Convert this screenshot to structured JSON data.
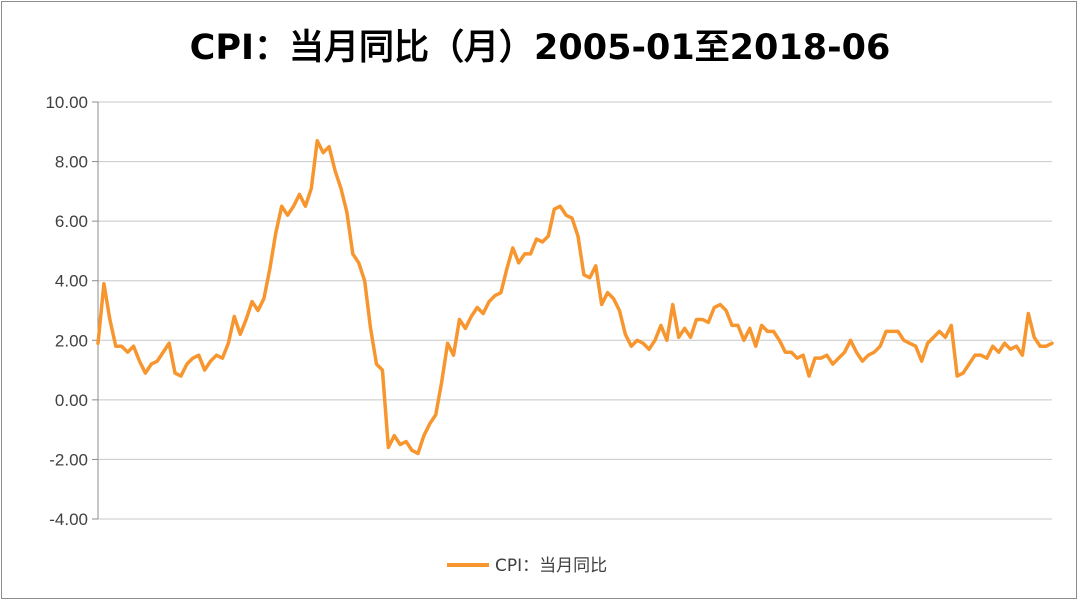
{
  "chart_data": {
    "type": "line",
    "title": "CPI：当月同比（月）2005-01至2018-06",
    "xlabel": "",
    "ylabel": "",
    "ylim": [
      -4,
      10
    ],
    "yticks": [
      "10.00",
      "8.00",
      "6.00",
      "4.00",
      "2.00",
      "0.00",
      "-2.00",
      "-4.00"
    ],
    "grid": true,
    "legend_position": "bottom",
    "colors": {
      "series": "#f7962f",
      "grid": "#c8c8c8",
      "axis": "#8c8c8c"
    },
    "x_start": "2005-01",
    "x_end": "2018-06",
    "series": [
      {
        "name": "CPI：当月同比",
        "values": [
          1.9,
          3.9,
          2.7,
          1.8,
          1.8,
          1.6,
          1.8,
          1.3,
          0.9,
          1.2,
          1.3,
          1.6,
          1.9,
          0.9,
          0.8,
          1.2,
          1.4,
          1.5,
          1.0,
          1.3,
          1.5,
          1.4,
          1.9,
          2.8,
          2.2,
          2.7,
          3.3,
          3.0,
          3.4,
          4.4,
          5.6,
          6.5,
          6.2,
          6.5,
          6.9,
          6.5,
          7.1,
          8.7,
          8.3,
          8.5,
          7.7,
          7.1,
          6.3,
          4.9,
          4.6,
          4.0,
          2.4,
          1.2,
          1.0,
          -1.6,
          -1.2,
          -1.5,
          -1.4,
          -1.7,
          -1.8,
          -1.2,
          -0.8,
          -0.5,
          0.6,
          1.9,
          1.5,
          2.7,
          2.4,
          2.8,
          3.1,
          2.9,
          3.3,
          3.5,
          3.6,
          4.4,
          5.1,
          4.6,
          4.9,
          4.9,
          5.4,
          5.3,
          5.5,
          6.4,
          6.5,
          6.2,
          6.1,
          5.5,
          4.2,
          4.1,
          4.5,
          3.2,
          3.6,
          3.4,
          3.0,
          2.2,
          1.8,
          2.0,
          1.9,
          1.7,
          2.0,
          2.5,
          2.0,
          3.2,
          2.1,
          2.4,
          2.1,
          2.7,
          2.7,
          2.6,
          3.1,
          3.2,
          3.0,
          2.5,
          2.5,
          2.0,
          2.4,
          1.8,
          2.5,
          2.3,
          2.3,
          2.0,
          1.6,
          1.6,
          1.4,
          1.5,
          0.8,
          1.4,
          1.4,
          1.5,
          1.2,
          1.4,
          1.6,
          2.0,
          1.6,
          1.3,
          1.5,
          1.6,
          1.8,
          2.3,
          2.3,
          2.3,
          2.0,
          1.9,
          1.8,
          1.3,
          1.9,
          2.1,
          2.3,
          2.1,
          2.5,
          0.8,
          0.9,
          1.2,
          1.5,
          1.5,
          1.4,
          1.8,
          1.6,
          1.9,
          1.7,
          1.8,
          1.5,
          2.9,
          2.1,
          1.8,
          1.8,
          1.9
        ]
      }
    ]
  }
}
